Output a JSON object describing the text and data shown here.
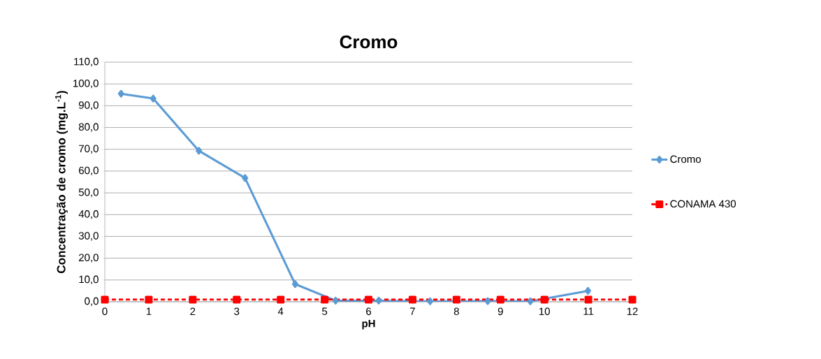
{
  "chart_data": {
    "type": "line",
    "title": "Cromo",
    "xlabel": "pH",
    "ylabel": "Concentração de cromo (mg.L$^{-1}$)",
    "xlim": [
      0,
      12
    ],
    "xticks": [
      0,
      1,
      2,
      3,
      4,
      5,
      6,
      7,
      8,
      9,
      10,
      11,
      12
    ],
    "ylim": [
      0,
      110
    ],
    "yticks": [
      {
        "value": 0,
        "label": "0,0"
      },
      {
        "value": 10,
        "label": "10,0"
      },
      {
        "value": 20,
        "label": "20,0"
      },
      {
        "value": 30,
        "label": "30,0"
      },
      {
        "value": 40,
        "label": "40,0"
      },
      {
        "value": 50,
        "label": "50,0"
      },
      {
        "value": 60,
        "label": "60,0"
      },
      {
        "value": 70,
        "label": "70,0"
      },
      {
        "value": 80,
        "label": "80,0"
      },
      {
        "value": 90,
        "label": "90,0"
      },
      {
        "value": 100,
        "label": "100,0"
      },
      {
        "value": 110,
        "label": "110,0"
      }
    ],
    "grid": "y",
    "legend": "right",
    "series": [
      {
        "name": "Cromo",
        "color": "#5b9bd5",
        "marker": "diamond",
        "line_style": "solid",
        "x": [
          0.37,
          1.1,
          2.14,
          3.19,
          4.33,
          5.25,
          6.23,
          7.4,
          8.71,
          9.68,
          10.99
        ],
        "values": [
          95.5,
          93.3,
          69.3,
          56.8,
          8.1,
          0.5,
          0.5,
          0.2,
          0.3,
          0.2,
          5.0
        ]
      },
      {
        "name": "CONAMA 430",
        "color": "#ff0000",
        "marker": "square",
        "line_style": "dashed",
        "x": [
          0,
          1,
          2,
          3,
          4,
          5,
          6,
          7,
          8,
          9,
          10,
          11,
          12
        ],
        "values": [
          1.0,
          1.0,
          1.0,
          1.0,
          1.0,
          1.0,
          1.0,
          1.0,
          1.0,
          1.0,
          1.0,
          1.0,
          1.0
        ]
      }
    ]
  }
}
